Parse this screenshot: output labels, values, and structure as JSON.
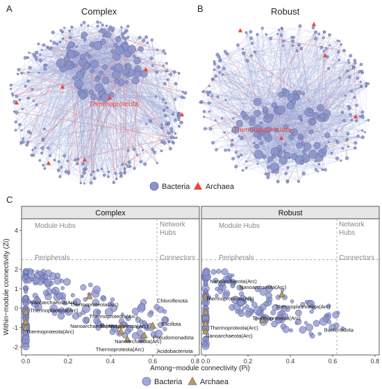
{
  "panels": {
    "a": {
      "letter": "A",
      "title": "Complex",
      "highlight": "Thermoproteota"
    },
    "b": {
      "letter": "B",
      "title": "Robust",
      "highlight": "Thermoplasmatota"
    },
    "c": {
      "letter": "C"
    }
  },
  "network_legend": {
    "bacteria": "Bacteria",
    "archaea": "Archaea"
  },
  "colors": {
    "bacteria": "#8b93c9",
    "bacteria_stroke": "#4a5390",
    "archaea": "#e8473a",
    "archaea_scatter": "#b89a6b",
    "edge_bacteria": "#9aa6d6",
    "edge_archaea": "#f08080",
    "strip_bg": "#e6e6e6"
  },
  "chart_data": {
    "type": "scatter",
    "xlabel": "Among−module connectivity (Pi)",
    "ylabel": "Within−module connectivity (Zi)",
    "xlim": [
      -0.02,
      0.82
    ],
    "ylim": [
      -2.4,
      4.6
    ],
    "x_ticks": [
      "0.0",
      "0.2",
      "0.4",
      "0.6",
      "0.8"
    ],
    "y_ticks": [
      "-2",
      "-1",
      "0",
      "1",
      "2",
      "4"
    ],
    "thresholds": {
      "pi": 0.62,
      "zi": 2.5
    },
    "regions": {
      "module_hubs": "Module Hubs",
      "network_hubs_1": "Network",
      "network_hubs_2": "Hubs",
      "peripherals": "Peripherals",
      "connectors": "Connectors"
    },
    "legend": {
      "bacteria": "Bacteria",
      "archaea": "Archaea"
    },
    "facets": [
      {
        "name": "Complex",
        "archaea_points": [
          [
            0.0,
            -0.2
          ],
          [
            0.0,
            -0.7
          ],
          [
            0.0,
            -1.0
          ],
          [
            0.3,
            0.6
          ],
          [
            0.45,
            -0.9
          ],
          [
            0.6,
            -0.9
          ],
          [
            0.45,
            -1.2
          ],
          [
            0.48,
            -1.6
          ],
          [
            0.56,
            -1.4
          ]
        ],
        "labels": [
          {
            "text": "Nanoarchaeota(Arc)",
            "x": 0.02,
            "y": 0.2
          },
          {
            "text": "Thermoproteota(Arc)",
            "x": 0.02,
            "y": -0.2
          },
          {
            "text": "Thermoproteota(Arc)",
            "x": 0.21,
            "y": 0.1
          },
          {
            "text": "Thermoproteota(Arc)",
            "x": 0.3,
            "y": -0.5
          },
          {
            "text": "Nanoarchaeota(Arc)",
            "x": 0.21,
            "y": -1.0
          },
          {
            "text": "Thermoproteota(Arc)",
            "x": 0.0,
            "y": -1.3
          },
          {
            "text": "Thermoproteota(Arc)",
            "x": 0.35,
            "y": -1.0
          },
          {
            "text": "Nanoarchaeota(Arc)",
            "x": 0.42,
            "y": -1.8
          },
          {
            "text": "Thermoproteota(Arc)",
            "x": 0.33,
            "y": -2.2
          },
          {
            "text": "Chloroflexota",
            "x": 0.62,
            "y": 0.3
          },
          {
            "text": "Bacillota",
            "x": 0.64,
            "y": -0.9
          },
          {
            "text": "Pseudomonadota",
            "x": 0.6,
            "y": -1.6
          },
          {
            "text": "Acidobacteriota",
            "x": 0.62,
            "y": -2.3
          }
        ]
      },
      {
        "name": "Robust",
        "archaea_points": [
          [
            0.0,
            0.6
          ],
          [
            0.0,
            -0.2
          ],
          [
            0.0,
            -0.8
          ],
          [
            0.0,
            -1.2
          ],
          [
            0.36,
            0.7
          ],
          [
            0.27,
            -0.6
          ]
        ],
        "labels": [
          {
            "text": "Nanoarchaeota(Arc)",
            "x": 0.02,
            "y": 1.3
          },
          {
            "text": "Nanoarchaeota(Arc)",
            "x": 0.16,
            "y": 1.0
          },
          {
            "text": "Thermoproteota(Arc)",
            "x": 0.0,
            "y": 0.4
          },
          {
            "text": "Thermoplasmatota(Arc)",
            "x": 0.33,
            "y": 0.0
          },
          {
            "text": "Thermoproteota(Arc)",
            "x": 0.22,
            "y": -0.6
          },
          {
            "text": "Thermoproteota(Arc)",
            "x": 0.02,
            "y": -1.1
          },
          {
            "text": "Nanoarchaeota(Arc)",
            "x": 0.0,
            "y": -1.5
          },
          {
            "text": "Bacteroidota",
            "x": 0.56,
            "y": -1.2
          }
        ]
      }
    ]
  }
}
